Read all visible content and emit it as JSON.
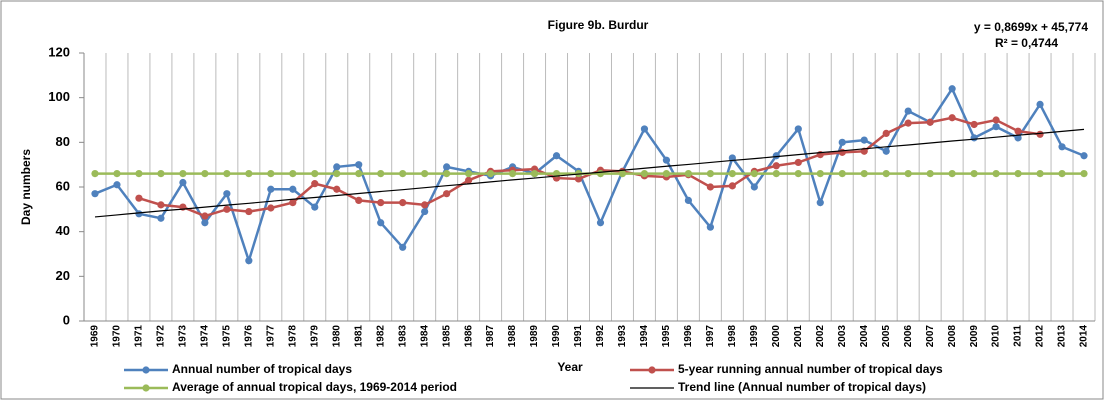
{
  "chart_data": {
    "type": "line",
    "title": "Figure 9b. Burdur",
    "annotations": [
      "y = 0,8699x + 45,774",
      "R² = 0,4744"
    ],
    "xlabel": "Year",
    "ylabel": "Day numbers",
    "categories": [
      "1969",
      "1970",
      "1971",
      "1972",
      "1973",
      "1974",
      "1975",
      "1976",
      "1977",
      "1978",
      "1979",
      "1980",
      "1981",
      "1982",
      "1983",
      "1984",
      "1985",
      "1986",
      "1987",
      "1988",
      "1989",
      "1990",
      "1991",
      "1992",
      "1993",
      "1994",
      "1995",
      "1996",
      "1997",
      "1998",
      "1999",
      "2000",
      "2001",
      "2002",
      "2003",
      "2004",
      "2005",
      "2006",
      "2007",
      "2008",
      "2009",
      "2010",
      "2011",
      "2012",
      "2013",
      "2014"
    ],
    "ylim": [
      0,
      120
    ],
    "yticks": [
      0,
      20,
      40,
      60,
      80,
      100,
      120
    ],
    "grid": "x",
    "series": [
      {
        "name": "Annual number of tropical days",
        "color": "#4f81bd",
        "marker": true,
        "values": [
          57,
          61,
          48,
          46,
          62,
          44,
          57,
          27,
          59,
          59,
          51,
          69,
          70,
          44,
          33,
          49,
          69,
          67,
          65,
          69,
          66,
          74,
          67,
          44,
          67,
          86,
          72,
          54,
          42,
          73,
          60,
          74,
          86,
          53,
          80,
          81,
          76,
          94,
          89,
          104,
          82,
          87,
          82,
          97,
          78,
          74
        ]
      },
      {
        "name": "5-year running annual number of tropical days",
        "color": "#c0504d",
        "marker": true,
        "values": [
          null,
          null,
          55,
          52,
          51,
          47,
          50,
          49,
          50.6,
          53,
          61.5,
          59,
          54,
          53,
          53,
          52,
          57,
          63,
          67,
          67.5,
          68,
          64,
          63.6,
          67.5,
          67,
          65,
          64.5,
          65.5,
          60,
          60.5,
          67,
          69.5,
          71,
          74.5,
          75.5,
          76,
          84,
          88.6,
          89,
          91,
          88,
          90,
          85,
          83.6,
          null,
          null
        ]
      },
      {
        "name": "Average of annual tropical days, 1969-2014 period",
        "color": "#9bbb59",
        "marker": true,
        "values": [
          66,
          66,
          66,
          66,
          66,
          66,
          66,
          66,
          66,
          66,
          66,
          66,
          66,
          66,
          66,
          66,
          66,
          66,
          66,
          66,
          66,
          66,
          66,
          66,
          66,
          66,
          66,
          66,
          66,
          66,
          66,
          66,
          66,
          66,
          66,
          66,
          66,
          66,
          66,
          66,
          66,
          66,
          66,
          66,
          66,
          66
        ]
      },
      {
        "name": "Trend line (Annual number of tropical days)",
        "color": "#000000",
        "marker": false,
        "values": [
          46.6,
          47.5,
          48.4,
          49.3,
          50.1,
          51.0,
          51.9,
          52.7,
          53.6,
          54.5,
          55.3,
          56.2,
          57.1,
          58.0,
          58.8,
          59.7,
          60.6,
          61.4,
          62.3,
          63.2,
          64.0,
          64.9,
          65.8,
          66.6,
          67.5,
          68.4,
          69.3,
          70.1,
          71.0,
          71.9,
          72.7,
          73.6,
          74.5,
          75.4,
          76.2,
          77.1,
          78.0,
          78.8,
          79.7,
          80.6,
          81.4,
          82.3,
          83.2,
          84.0,
          84.9,
          85.8
        ]
      }
    ]
  }
}
